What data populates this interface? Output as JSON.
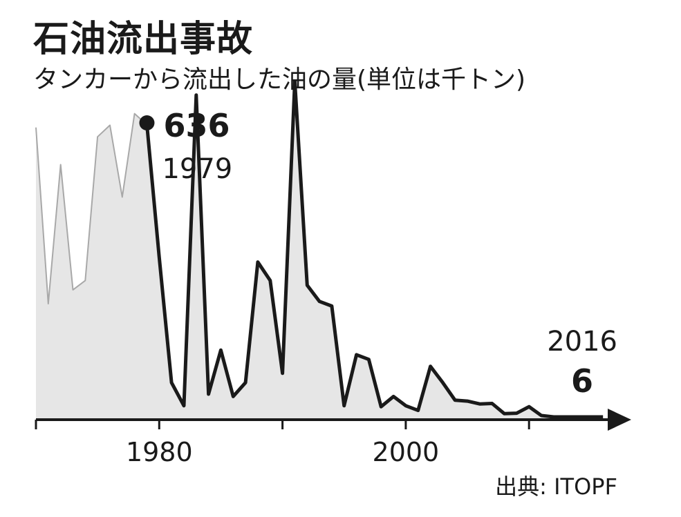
{
  "header": {
    "title": "石油流出事故",
    "subtitle": "タンカーから流出した油の量(単位は千トン)"
  },
  "source": "出典: ITOPF",
  "colors": {
    "line": "#1a1a1a",
    "area": "#e6e6e6",
    "area_edge": "#a8a8a8"
  },
  "chart_data": {
    "type": "area",
    "title": "石油流出事故",
    "subtitle": "タンカーから流出した油の量(単位は千トン)",
    "xlabel": "",
    "ylabel": "",
    "xlim": [
      1970,
      2017
    ],
    "ylim": [
      0,
      640
    ],
    "x_ticks": [
      1980,
      2000
    ],
    "x_tick_labels": [
      "1980",
      "2000"
    ],
    "grid": false,
    "series": [
      {
        "x": [
          1970,
          1971,
          1972,
          1973,
          1974,
          1975,
          1976,
          1977,
          1978,
          1979,
          1980,
          1981,
          1982,
          1983,
          1984,
          1985,
          1986,
          1987,
          1988,
          1989,
          1990,
          1991,
          1992,
          1993,
          1994,
          1995,
          1996,
          1997,
          1998,
          1999,
          2000,
          2001,
          2002,
          2003,
          2004,
          2005,
          2006,
          2007,
          2008,
          2009,
          2010,
          2011,
          2012,
          2013,
          2014,
          2015,
          2016
        ],
        "values": [
          630,
          250,
          550,
          280,
          300,
          610,
          635,
          480,
          660,
          636,
          350,
          80,
          30,
          700,
          55,
          150,
          50,
          80,
          340,
          300,
          100,
          730,
          290,
          255,
          245,
          30,
          140,
          130,
          28,
          50,
          30,
          20,
          115,
          80,
          42,
          40,
          34,
          35,
          13,
          14,
          28,
          9,
          6,
          6,
          6,
          6,
          6
        ]
      }
    ],
    "annotations": [
      {
        "label": "636",
        "sublabel": "1979"
      },
      {
        "label": "6",
        "sublabel": "2016"
      }
    ]
  }
}
